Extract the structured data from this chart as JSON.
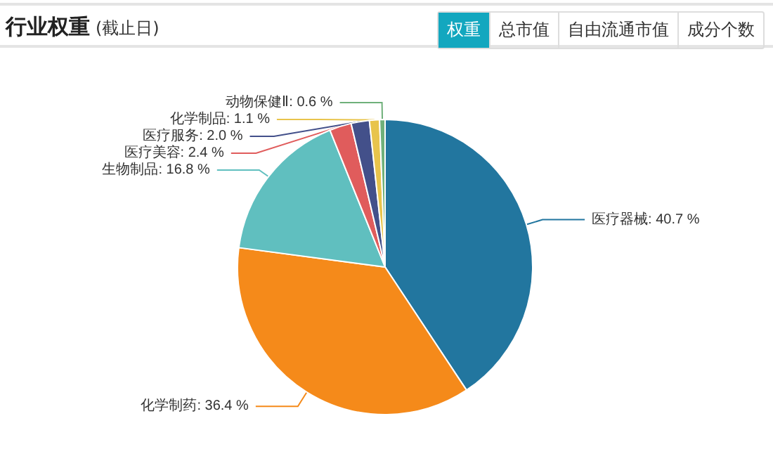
{
  "chart_data": {
    "type": "pie",
    "title": "行业权重",
    "subtitle": "(截止日)",
    "annotations": [
      "权重",
      "总市值",
      "自由流通市值",
      "成分个数"
    ],
    "categories": [
      "医疗器械",
      "化学制药",
      "生物制品",
      "医疗美容",
      "医疗服务",
      "化学制品",
      "动物保健Ⅱ"
    ],
    "values": [
      40.7,
      36.4,
      16.8,
      2.4,
      2.0,
      1.1,
      0.6
    ],
    "value_labels": [
      "40.7 %",
      "36.4 %",
      "16.8 %",
      "2.4 %",
      "2.0 %",
      "1.1 %",
      "0.6 %"
    ],
    "colors": [
      "#22769f",
      "#f58a1a",
      "#60bfbf",
      "#e05c5c",
      "#43508a",
      "#e8c44c",
      "#6fb07a"
    ],
    "legend": false
  }
}
